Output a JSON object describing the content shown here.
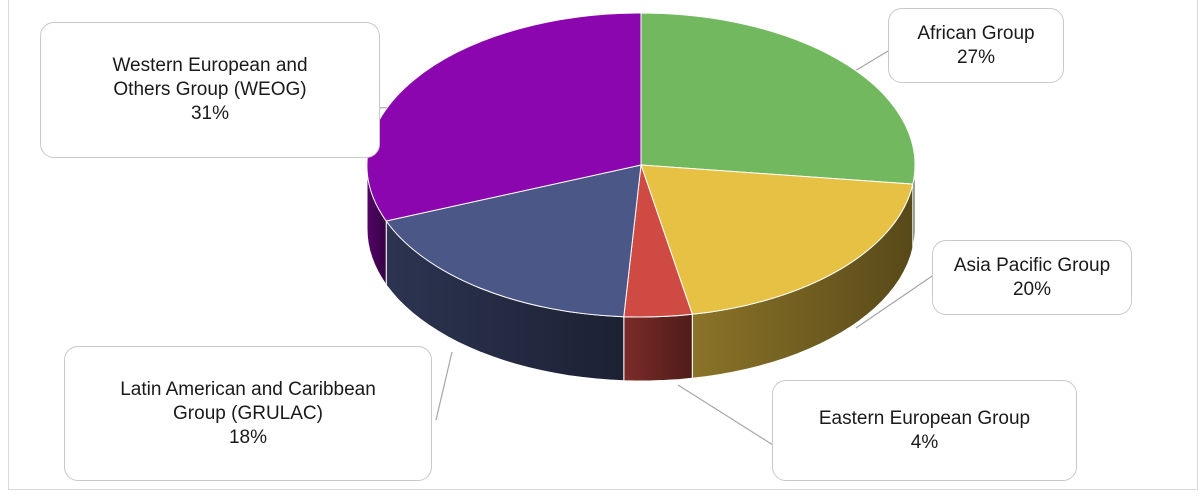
{
  "chart_data": {
    "type": "pie",
    "title": "",
    "legend": "none",
    "categories": [
      "African Group",
      "Asia Pacific Group",
      "Eastern European Group",
      "Latin American and Caribbean Group (GRULAC)",
      "Western European and Others Group (WEOG)"
    ],
    "values": [
      27,
      20,
      4,
      18,
      31
    ],
    "colors": [
      "#72b85f",
      "#e7c143",
      "#cf4a43",
      "#4a5787",
      "#8b06ae"
    ],
    "labels": [
      {
        "name": "African Group",
        "value": "27%"
      },
      {
        "name": "Asia Pacific Group",
        "value": "20%"
      },
      {
        "name": "Eastern European Group",
        "value": "4%"
      },
      {
        "name": "Latin American and Caribbean\nGroup (GRULAC)",
        "value": "18%"
      },
      {
        "name": "Western European and\nOthers Group (WEOG)",
        "value": "31%"
      }
    ]
  }
}
